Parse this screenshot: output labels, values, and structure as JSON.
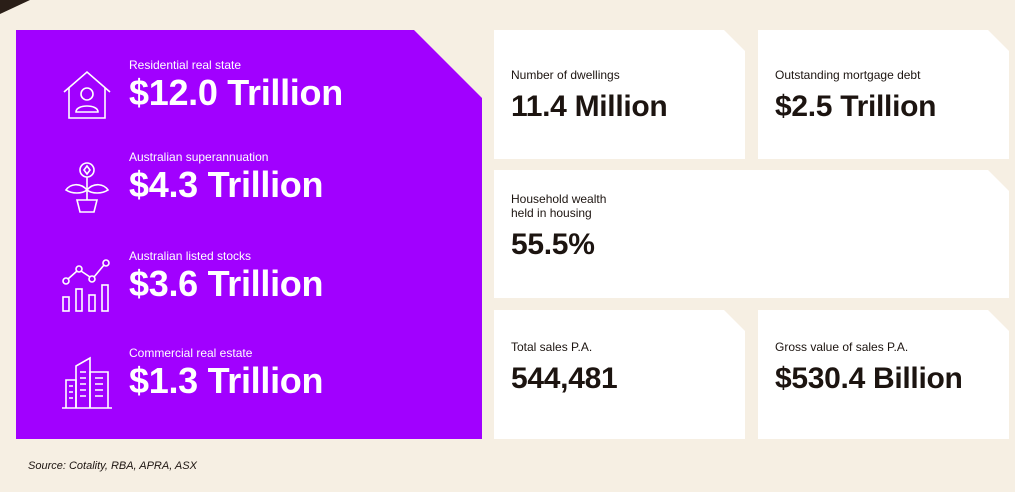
{
  "left_panel": {
    "items": [
      {
        "label": "Residential real state",
        "value": "$12.0 Trillion",
        "icon": "house-person-icon"
      },
      {
        "label": "Australian superannuation",
        "value": "$4.3 Trillion",
        "icon": "plant-coin-icon"
      },
      {
        "label": "Australian listed stocks",
        "value": "$3.6 Trillion",
        "icon": "stock-chart-icon"
      },
      {
        "label": "Commercial real estate",
        "value": "$1.3 Trillion",
        "icon": "office-building-icon"
      }
    ]
  },
  "cards": {
    "dwellings": {
      "label": "Number of dwellings",
      "value": "11.4 Million"
    },
    "mortgage": {
      "label": "Outstanding mortgage debt",
      "value": "$2.5 Trillion"
    },
    "wealth": {
      "label_line1": "Household wealth",
      "label_line2": "held in housing",
      "value": "55.5%"
    },
    "sales": {
      "label": "Total sales P.A.",
      "value": "544,481"
    },
    "gross": {
      "label": "Gross value of sales P.A.",
      "value": "$530.4 Billion"
    }
  },
  "source": "Source: Cotality, RBA, APRA, ASX",
  "colors": {
    "purple": "#a100ff",
    "background": "#f6efe3",
    "card": "#ffffff",
    "text": "#1c1410"
  }
}
